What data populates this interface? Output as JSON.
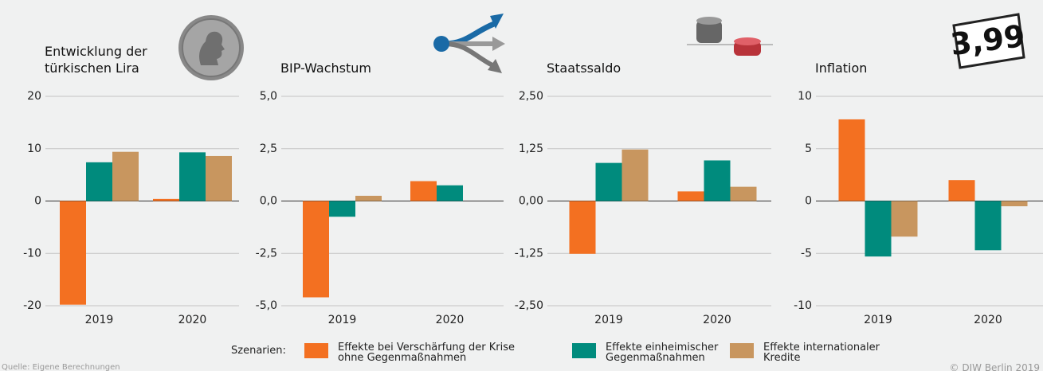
{
  "chart_data": [
    {
      "type": "bar",
      "title": "Entwicklung der türkischen Lira",
      "categories": [
        "2019",
        "2020"
      ],
      "series": [
        {
          "name": "Effekte bei Verschärfung der Krise ohne Gegenmaßnahmen",
          "color": "#f37021",
          "values": [
            -19.8,
            0.4
          ]
        },
        {
          "name": "Effekte einheimischer Gegenmaßnahmen",
          "color": "#008b7d",
          "values": [
            7.4,
            9.3
          ]
        },
        {
          "name": "Effekte internationaler Kredite",
          "color": "#c8965f",
          "values": [
            9.4,
            8.6
          ]
        }
      ],
      "ylim": [
        -20,
        20
      ],
      "yticks": [
        -20,
        -10,
        0,
        10,
        20
      ],
      "grid": true
    },
    {
      "type": "bar",
      "title": "BIP-Wachstum",
      "categories": [
        "2019",
        "2020"
      ],
      "series": [
        {
          "name": "Effekte bei Verschärfung der Krise ohne Gegenmaßnahmen",
          "color": "#f37021",
          "values": [
            -4.6,
            0.95
          ]
        },
        {
          "name": "Effekte einheimischer Gegenmaßnahmen",
          "color": "#008b7d",
          "values": [
            -0.75,
            0.75
          ]
        },
        {
          "name": "Effekte internationaler Kredite",
          "color": "#c8965f",
          "values": [
            0.25,
            0
          ]
        }
      ],
      "ylim": [
        -5,
        5
      ],
      "yticks": [
        {
          "value": -5,
          "label": "-5,0"
        },
        {
          "value": -2.5,
          "label": "-2,5"
        },
        {
          "value": 0,
          "label": "0,0"
        },
        {
          "value": 2.5,
          "label": "2,5"
        },
        {
          "value": 5,
          "label": "5,0"
        }
      ],
      "grid": true
    },
    {
      "type": "bar",
      "title": "Staatssaldo",
      "categories": [
        "2019",
        "2020"
      ],
      "series": [
        {
          "name": "Effekte bei Verschärfung der Krise ohne Gegenmaßnahmen",
          "color": "#f37021",
          "values": [
            -1.26,
            0.23
          ]
        },
        {
          "name": "Effekte einheimischer Gegenmaßnahmen",
          "color": "#008b7d",
          "values": [
            0.91,
            0.97
          ]
        },
        {
          "name": "Effekte internationaler Kredite",
          "color": "#c8965f",
          "values": [
            1.23,
            0.34
          ]
        }
      ],
      "ylim": [
        -2.5,
        2.5
      ],
      "yticks": [
        {
          "value": -2.5,
          "label": "-2,50"
        },
        {
          "value": -1.25,
          "label": "-1,25"
        },
        {
          "value": 0,
          "label": "0,00"
        },
        {
          "value": 1.25,
          "label": "1,25"
        },
        {
          "value": 2.5,
          "label": "2,50"
        }
      ],
      "grid": true
    },
    {
      "type": "bar",
      "title": "Inflation",
      "categories": [
        "2019",
        "2020"
      ],
      "series": [
        {
          "name": "Effekte bei Verschärfung der Krise ohne Gegenmaßnahmen",
          "color": "#f37021",
          "values": [
            7.8,
            2.0
          ]
        },
        {
          "name": "Effekte einheimischer Gegenmaßnahmen",
          "color": "#008b7d",
          "values": [
            -5.3,
            -4.7
          ]
        },
        {
          "name": "Effekte internationaler Kredite",
          "color": "#c8965f",
          "values": [
            -3.4,
            -0.5
          ]
        }
      ],
      "ylim": [
        -10,
        10
      ],
      "yticks": [
        -10,
        -5,
        0,
        5,
        10
      ],
      "grid": true
    }
  ],
  "legend_title": "Szenarien:",
  "price_tag": "3,99",
  "source": "Quelle: Eigene Berechnungen",
  "copyright": "© DIW Berlin 2019"
}
